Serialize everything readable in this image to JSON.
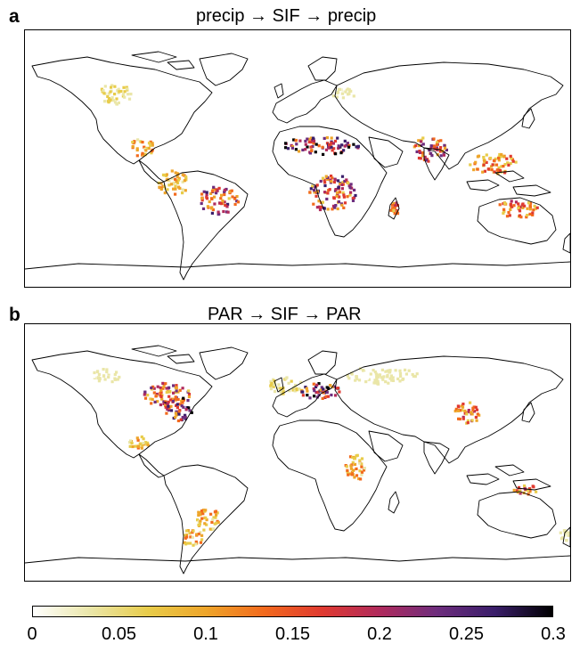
{
  "panels": [
    {
      "letter": "a",
      "title": "precip → SIF → precip",
      "hotspots": [
        {
          "region": "western-north-america",
          "value": 0.06
        },
        {
          "region": "central-america",
          "value": 0.12
        },
        {
          "region": "northern-south-america",
          "value": 0.1
        },
        {
          "region": "eastern-brazil",
          "value": 0.22
        },
        {
          "region": "sahel",
          "value": 0.27
        },
        {
          "region": "southern-africa",
          "value": 0.22
        },
        {
          "region": "madagascar",
          "value": 0.18
        },
        {
          "region": "ukraine-russia",
          "value": 0.04
        },
        {
          "region": "india",
          "value": 0.2
        },
        {
          "region": "southeast-asia",
          "value": 0.14
        },
        {
          "region": "northern-australia",
          "value": 0.15
        }
      ]
    },
    {
      "letter": "b",
      "title": "PAR → SIF → PAR",
      "hotspots": [
        {
          "region": "western-canada",
          "value": 0.04
        },
        {
          "region": "great-lakes",
          "value": 0.2
        },
        {
          "region": "eastern-us",
          "value": 0.24
        },
        {
          "region": "mexico",
          "value": 0.1
        },
        {
          "region": "southern-brazil",
          "value": 0.1
        },
        {
          "region": "argentina",
          "value": 0.12
        },
        {
          "region": "europe",
          "value": 0.06
        },
        {
          "region": "balkans-black-sea",
          "value": 0.24
        },
        {
          "region": "russia",
          "value": 0.04
        },
        {
          "region": "east-africa",
          "value": 0.12
        },
        {
          "region": "china",
          "value": 0.16
        },
        {
          "region": "new-guinea",
          "value": 0.16
        },
        {
          "region": "new-zealand",
          "value": 0.04
        }
      ]
    }
  ],
  "colorbar": {
    "ticks": [
      "0",
      "0.05",
      "0.1",
      "0.15",
      "0.2",
      "0.25",
      "0.3"
    ],
    "range": [
      0,
      0.3
    ],
    "colors": [
      "#ffffff",
      "#eae6a8",
      "#e8cc4a",
      "#eea52a",
      "#f26a1d",
      "#e03a30",
      "#b02a5c",
      "#6e2d7d",
      "#3a1e6a",
      "#000000"
    ]
  }
}
